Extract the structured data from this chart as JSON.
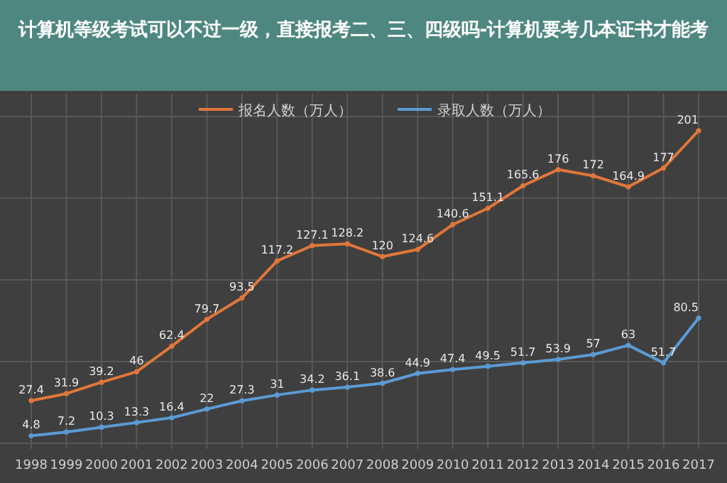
{
  "chart_data": {
    "type": "line",
    "title": "计算机等级考试可以不过一级，直接报考二、三、四级吗-计算机要考几本证书才能考",
    "categories": [
      "1998",
      "1999",
      "2000",
      "2001",
      "2002",
      "2003",
      "2004",
      "2005",
      "2006",
      "2007",
      "2008",
      "2009",
      "2010",
      "2011",
      "2012",
      "2013",
      "2014",
      "2015",
      "2016",
      "2017"
    ],
    "series": [
      {
        "name": "报名人数（万人）",
        "color": "#e0773a",
        "values": [
          27.4,
          31.9,
          39.2,
          46,
          62.4,
          79.7,
          93.5,
          117.2,
          127.1,
          128.2,
          120,
          124.6,
          140.6,
          151.1,
          165.6,
          176,
          172,
          164.9,
          177,
          201
        ]
      },
      {
        "name": "录取人数（万人）",
        "color": "#5b9bd5",
        "values": [
          4.8,
          7.2,
          10.3,
          13.3,
          16.4,
          22,
          27.3,
          31,
          34.2,
          36.1,
          38.6,
          44.9,
          47.4,
          49.5,
          51.7,
          53.9,
          57,
          63,
          51.7,
          80.5
        ]
      }
    ],
    "data_labels": true,
    "grid": true,
    "legend": "top",
    "marker": "circle"
  }
}
